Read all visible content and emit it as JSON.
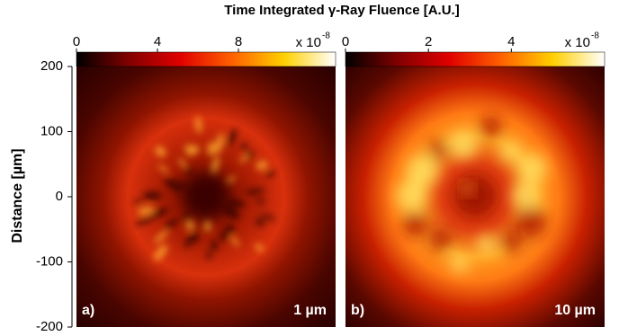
{
  "chart_data": {
    "type": "heatmap",
    "title": "Time Integrated γ-Ray Fluence [A.U.]",
    "ylabel": "Distance [µm]",
    "ylim": [
      -200,
      200
    ],
    "yticks": [
      200,
      100,
      0,
      -100,
      -200
    ],
    "colormap": "hot",
    "panels": [
      {
        "label": "a)",
        "annotation": "1 µm",
        "colorbar": {
          "clim": [
            0,
            12.8
          ],
          "ticks": [
            0,
            4,
            8
          ],
          "multiplier": "x 10",
          "exponent": "-8"
        }
      },
      {
        "label": "b)",
        "annotation": "10 µm",
        "colorbar": {
          "clim": [
            0,
            6.25
          ],
          "ticks": [
            0,
            2,
            4
          ],
          "multiplier": "x 10",
          "exponent": "-8"
        }
      }
    ]
  }
}
